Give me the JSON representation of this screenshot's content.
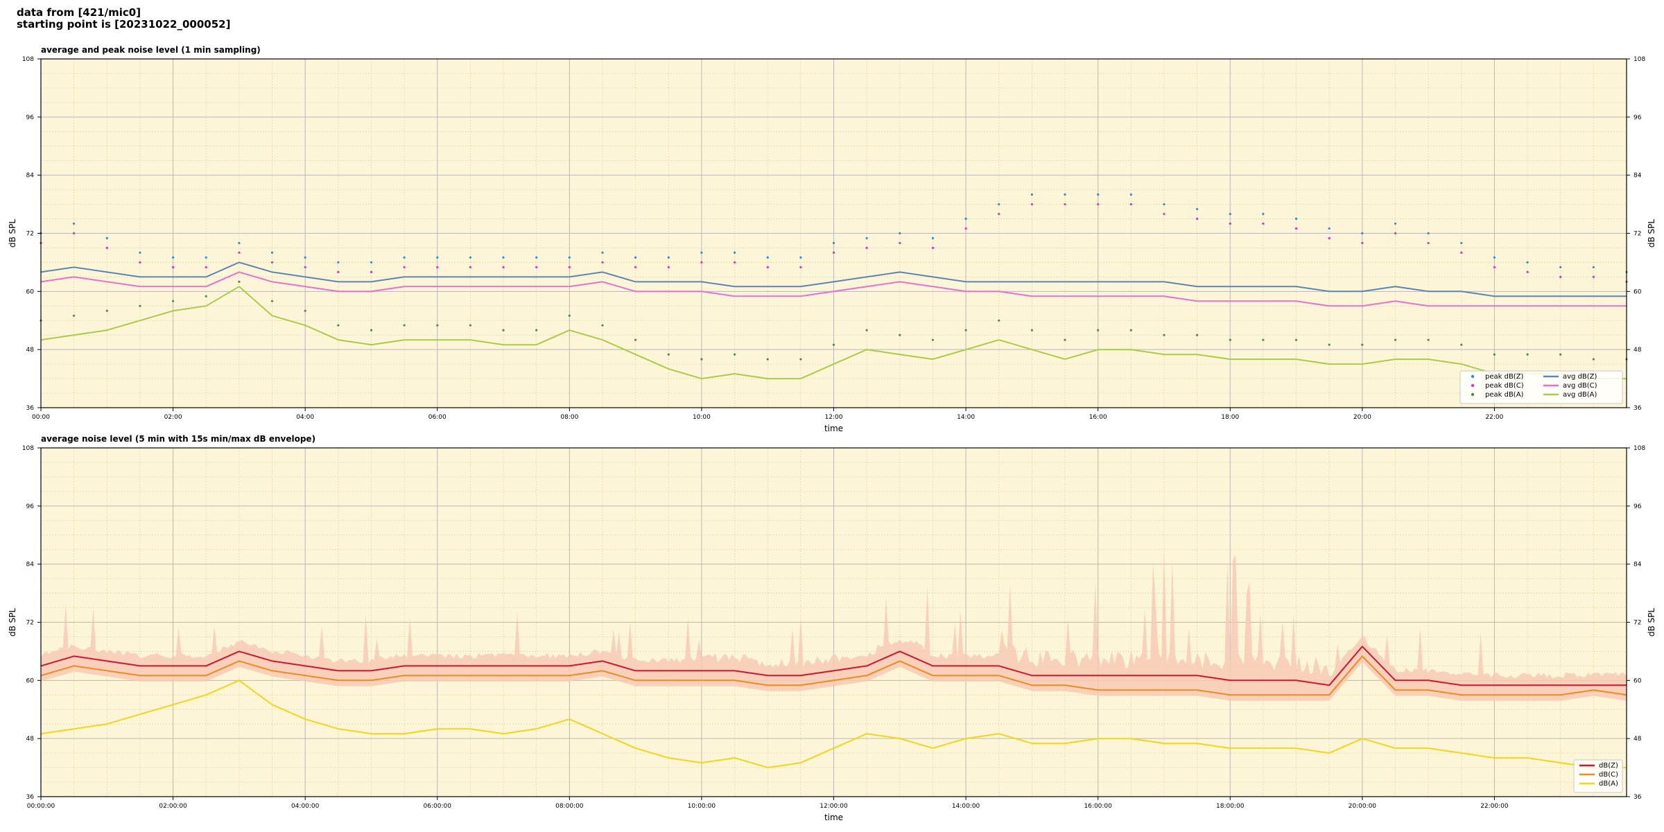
{
  "header": {
    "line1": "data from [421/mic0]",
    "line2": "starting point is [20231022_000052]"
  },
  "colors": {
    "plot_bg": "#fdf5d8",
    "grid_major": "#b8b8b8",
    "grid_minor": "#e3d7a6",
    "peak_z": "#2e8fd8",
    "peak_c": "#e030d0",
    "peak_a": "#4d8a52",
    "avg_z": "#5a86b6",
    "avg_c": "#e671d0",
    "avg_a": "#a8cc44",
    "env_z": "#d3142e",
    "env_c": "#f08a1c",
    "env_a": "#f5d514",
    "env_band": "#f7c8b4"
  },
  "chart_data": [
    {
      "type": "line",
      "title": "average and peak noise level (1 min sampling)",
      "xlabel": "time",
      "ylabel": "dB SPL",
      "ylabel_right": "dB SPL",
      "xlim": [
        0,
        24
      ],
      "ylim": [
        36,
        108
      ],
      "x_ticks": [
        0,
        2,
        4,
        6,
        8,
        10,
        12,
        14,
        16,
        18,
        20,
        22
      ],
      "x_tick_labels": [
        "00:00",
        "02:00",
        "04:00",
        "06:00",
        "08:00",
        "10:00",
        "12:00",
        "14:00",
        "16:00",
        "18:00",
        "20:00",
        "22:00"
      ],
      "y_ticks": [
        36,
        48,
        60,
        72,
        84,
        96,
        108
      ],
      "y_tick_labels": [
        "36",
        "48",
        "60",
        "72",
        "84",
        "96",
        "108"
      ],
      "grid": true,
      "legend_position": "bottom-right",
      "legend": [
        {
          "label": "peak dB(Z)",
          "kind": "dot",
          "color_key": "peak_z"
        },
        {
          "label": "peak dB(C)",
          "kind": "dot",
          "color_key": "peak_c"
        },
        {
          "label": "peak dB(A)",
          "kind": "dot",
          "color_key": "peak_a"
        },
        {
          "label": "avg dB(Z)",
          "kind": "line",
          "color_key": "avg_z"
        },
        {
          "label": "avg dB(C)",
          "kind": "line",
          "color_key": "avg_c"
        },
        {
          "label": "avg dB(A)",
          "kind": "line",
          "color_key": "avg_a"
        }
      ],
      "x": [
        0,
        0.5,
        1,
        1.5,
        2,
        2.5,
        3,
        3.5,
        4,
        4.5,
        5,
        5.5,
        6,
        6.5,
        7,
        7.5,
        8,
        8.5,
        9,
        9.5,
        10,
        10.5,
        11,
        11.5,
        12,
        12.5,
        13,
        13.5,
        14,
        14.5,
        15,
        15.5,
        16,
        16.5,
        17,
        17.5,
        18,
        18.5,
        19,
        19.5,
        20,
        20.5,
        21,
        21.5,
        22,
        22.5,
        23,
        23.5,
        24
      ],
      "series": [
        {
          "name": "avg dB(Z)",
          "color_key": "avg_z",
          "kind": "line",
          "values": [
            64,
            65,
            64,
            63,
            63,
            63,
            66,
            64,
            63,
            62,
            62,
            63,
            63,
            63,
            63,
            63,
            63,
            64,
            62,
            62,
            62,
            61,
            61,
            61,
            62,
            63,
            64,
            63,
            62,
            62,
            62,
            62,
            62,
            62,
            62,
            61,
            61,
            61,
            61,
            60,
            60,
            61,
            60,
            60,
            59,
            59,
            59,
            59,
            59
          ]
        },
        {
          "name": "avg dB(C)",
          "color_key": "avg_c",
          "kind": "line",
          "values": [
            62,
            63,
            62,
            61,
            61,
            61,
            64,
            62,
            61,
            60,
            60,
            61,
            61,
            61,
            61,
            61,
            61,
            62,
            60,
            60,
            60,
            59,
            59,
            59,
            60,
            61,
            62,
            61,
            60,
            60,
            59,
            59,
            59,
            59,
            59,
            58,
            58,
            58,
            58,
            57,
            57,
            58,
            57,
            57,
            57,
            57,
            57,
            57,
            57
          ]
        },
        {
          "name": "avg dB(A)",
          "color_key": "avg_a",
          "kind": "line",
          "values": [
            50,
            51,
            52,
            54,
            56,
            57,
            61,
            55,
            53,
            50,
            49,
            50,
            50,
            50,
            49,
            49,
            52,
            50,
            47,
            44,
            42,
            43,
            42,
            42,
            45,
            48,
            47,
            46,
            48,
            50,
            48,
            46,
            48,
            48,
            47,
            47,
            46,
            46,
            46,
            45,
            45,
            46,
            46,
            45,
            43,
            43,
            43,
            42,
            42
          ]
        },
        {
          "name": "peak dB(Z)",
          "color_key": "peak_z",
          "kind": "dot",
          "values": [
            72,
            74,
            71,
            68,
            67,
            67,
            70,
            68,
            67,
            66,
            66,
            67,
            67,
            67,
            67,
            67,
            67,
            68,
            67,
            67,
            68,
            68,
            67,
            67,
            70,
            71,
            72,
            71,
            75,
            78,
            80,
            80,
            80,
            80,
            78,
            77,
            76,
            76,
            75,
            73,
            72,
            74,
            72,
            70,
            67,
            66,
            65,
            65,
            64
          ]
        },
        {
          "name": "peak dB(C)",
          "color_key": "peak_c",
          "kind": "dot",
          "values": [
            70,
            72,
            69,
            66,
            65,
            65,
            68,
            66,
            65,
            64,
            64,
            65,
            65,
            65,
            65,
            65,
            65,
            66,
            65,
            65,
            66,
            66,
            65,
            65,
            68,
            69,
            70,
            69,
            73,
            76,
            78,
            78,
            78,
            78,
            76,
            75,
            74,
            74,
            73,
            71,
            70,
            72,
            70,
            68,
            65,
            64,
            63,
            63,
            62
          ]
        },
        {
          "name": "peak dB(A)",
          "color_key": "peak_a",
          "kind": "dot",
          "values": [
            54,
            55,
            56,
            57,
            58,
            59,
            62,
            58,
            56,
            53,
            52,
            53,
            53,
            53,
            52,
            52,
            55,
            53,
            50,
            47,
            46,
            47,
            46,
            46,
            49,
            52,
            51,
            50,
            52,
            54,
            52,
            50,
            52,
            52,
            51,
            51,
            50,
            50,
            50,
            49,
            49,
            50,
            50,
            49,
            47,
            47,
            47,
            46,
            46
          ]
        }
      ]
    },
    {
      "type": "line",
      "title": "average noise level (5 min with 15s min/max dB envelope)",
      "xlabel": "time",
      "ylabel": "dB SPL",
      "ylabel_right": "dB SPL",
      "xlim": [
        0,
        24
      ],
      "ylim": [
        36,
        108
      ],
      "x_ticks": [
        0,
        2,
        4,
        6,
        8,
        10,
        12,
        14,
        16,
        18,
        20,
        22
      ],
      "x_tick_labels": [
        "00:00:00",
        "02:00:00",
        "04:00:00",
        "06:00:00",
        "08:00:00",
        "10:00:00",
        "12:00:00",
        "14:00:00",
        "16:00:00",
        "18:00:00",
        "20:00:00",
        "22:00:00"
      ],
      "y_ticks": [
        36,
        48,
        60,
        72,
        84,
        96,
        108
      ],
      "y_tick_labels": [
        "36",
        "48",
        "60",
        "72",
        "84",
        "96",
        "108"
      ],
      "grid": true,
      "legend_position": "bottom-right",
      "legend": [
        {
          "label": "dB(Z)",
          "kind": "line",
          "color_key": "env_z"
        },
        {
          "label": "dB(C)",
          "kind": "line",
          "color_key": "env_c"
        },
        {
          "label": "dB(A)",
          "kind": "line",
          "color_key": "env_a"
        }
      ],
      "x": [
        0,
        0.5,
        1,
        1.5,
        2,
        2.5,
        3,
        3.5,
        4,
        4.5,
        5,
        5.5,
        6,
        6.5,
        7,
        7.5,
        8,
        8.5,
        9,
        9.5,
        10,
        10.5,
        11,
        11.5,
        12,
        12.5,
        13,
        13.5,
        14,
        14.5,
        15,
        15.5,
        16,
        16.5,
        17,
        17.5,
        18,
        18.5,
        19,
        19.5,
        20,
        20.5,
        21,
        21.5,
        22,
        22.5,
        23,
        23.5,
        24
      ],
      "series": [
        {
          "name": "dB(Z)",
          "color_key": "env_z",
          "kind": "line",
          "values": [
            63,
            65,
            64,
            63,
            63,
            63,
            66,
            64,
            63,
            62,
            62,
            63,
            63,
            63,
            63,
            63,
            63,
            64,
            62,
            62,
            62,
            62,
            61,
            61,
            62,
            63,
            66,
            63,
            63,
            63,
            61,
            61,
            61,
            61,
            61,
            61,
            60,
            60,
            60,
            59,
            67,
            60,
            60,
            59,
            59,
            59,
            59,
            59,
            59
          ]
        },
        {
          "name": "dB(C)",
          "color_key": "env_c",
          "kind": "line",
          "values": [
            61,
            63,
            62,
            61,
            61,
            61,
            64,
            62,
            61,
            60,
            60,
            61,
            61,
            61,
            61,
            61,
            61,
            62,
            60,
            60,
            60,
            60,
            59,
            59,
            60,
            61,
            64,
            61,
            61,
            61,
            59,
            59,
            58,
            58,
            58,
            58,
            57,
            57,
            57,
            57,
            65,
            58,
            58,
            57,
            57,
            57,
            57,
            58,
            57
          ]
        },
        {
          "name": "dB(A)",
          "color_key": "env_a",
          "kind": "line",
          "values": [
            49,
            50,
            51,
            53,
            55,
            57,
            60,
            55,
            52,
            50,
            49,
            49,
            50,
            50,
            49,
            50,
            52,
            49,
            46,
            44,
            43,
            44,
            42,
            43,
            46,
            49,
            48,
            46,
            48,
            49,
            47,
            47,
            48,
            48,
            47,
            47,
            46,
            46,
            46,
            45,
            48,
            46,
            46,
            45,
            44,
            44,
            43,
            42,
            42
          ]
        }
      ]
    }
  ]
}
